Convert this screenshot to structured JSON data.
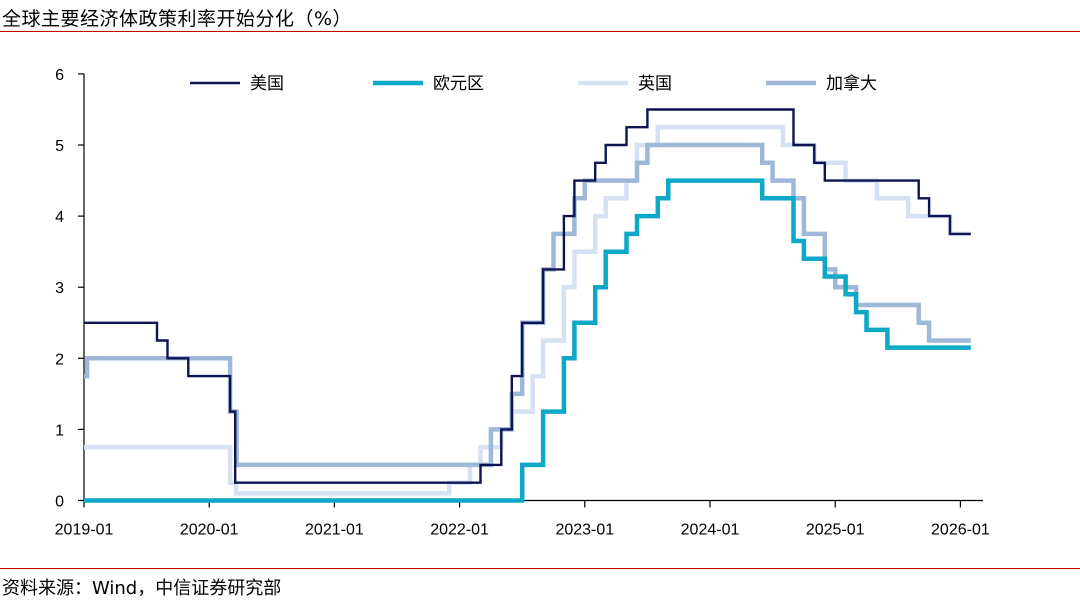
{
  "title": "全球主要经济体政策利率开始分化（%）",
  "source": "资料来源：Wind，中信证券研究部",
  "colors": {
    "美国": "#0d1450",
    "欧元区": "#0ca8c8",
    "英国": "#d6e2f3",
    "加拿大": "#9fb8d8"
  },
  "chart_data": {
    "type": "line",
    "step": true,
    "title": "全球主要经济体政策利率开始分化（%）",
    "xlabel": "",
    "ylabel": "",
    "xlim": [
      "2019-01",
      "2026-02"
    ],
    "ylim": [
      0,
      6
    ],
    "yticks": [
      0,
      1,
      2,
      3,
      4,
      5,
      6
    ],
    "xticks": [
      "2019-01",
      "2020-01",
      "2021-01",
      "2022-01",
      "2023-01",
      "2024-01",
      "2025-01",
      "2026-01"
    ],
    "grid": false,
    "legend_position": "top",
    "series": [
      {
        "name": "美国",
        "points": [
          [
            "2019-01",
            2.5
          ],
          [
            "2019-08",
            2.25
          ],
          [
            "2019-09",
            2.0
          ],
          [
            "2019-11",
            1.75
          ],
          [
            "2020-03",
            1.25
          ],
          [
            "2020-03-16",
            0.25
          ],
          [
            "2022-03",
            0.5
          ],
          [
            "2022-05",
            1.0
          ],
          [
            "2022-06",
            1.75
          ],
          [
            "2022-07",
            2.5
          ],
          [
            "2022-09",
            3.25
          ],
          [
            "2022-11",
            4.0
          ],
          [
            "2022-12",
            4.5
          ],
          [
            "2023-02",
            4.75
          ],
          [
            "2023-03",
            5.0
          ],
          [
            "2023-05",
            5.25
          ],
          [
            "2023-07",
            5.5
          ],
          [
            "2024-09",
            5.0
          ],
          [
            "2024-11",
            4.75
          ],
          [
            "2024-12",
            4.5
          ],
          [
            "2025-09",
            4.25
          ],
          [
            "2025-10",
            4.0
          ],
          [
            "2025-12",
            3.75
          ],
          [
            "2026-02",
            3.75
          ]
        ]
      },
      {
        "name": "欧元区",
        "points": [
          [
            "2019-01",
            0.0
          ],
          [
            "2022-07",
            0.5
          ],
          [
            "2022-09",
            1.25
          ],
          [
            "2022-11",
            2.0
          ],
          [
            "2022-12",
            2.5
          ],
          [
            "2023-02",
            3.0
          ],
          [
            "2023-03",
            3.5
          ],
          [
            "2023-05",
            3.75
          ],
          [
            "2023-06",
            4.0
          ],
          [
            "2023-08",
            4.25
          ],
          [
            "2023-09",
            4.5
          ],
          [
            "2024-06",
            4.25
          ],
          [
            "2024-09",
            3.65
          ],
          [
            "2024-10",
            3.4
          ],
          [
            "2024-12",
            3.15
          ],
          [
            "2025-02",
            2.9
          ],
          [
            "2025-03",
            2.65
          ],
          [
            "2025-04",
            2.4
          ],
          [
            "2025-06",
            2.15
          ],
          [
            "2026-02",
            2.15
          ]
        ]
      },
      {
        "name": "英国",
        "points": [
          [
            "2019-01",
            0.75
          ],
          [
            "2020-03",
            0.25
          ],
          [
            "2020-03-19",
            0.1
          ],
          [
            "2021-12",
            0.25
          ],
          [
            "2022-02",
            0.5
          ],
          [
            "2022-03",
            0.75
          ],
          [
            "2022-05",
            1.0
          ],
          [
            "2022-06",
            1.25
          ],
          [
            "2022-08",
            1.75
          ],
          [
            "2022-09",
            2.25
          ],
          [
            "2022-11",
            3.0
          ],
          [
            "2022-12",
            3.5
          ],
          [
            "2023-02",
            4.0
          ],
          [
            "2023-03",
            4.25
          ],
          [
            "2023-05",
            4.5
          ],
          [
            "2023-06",
            5.0
          ],
          [
            "2023-08",
            5.25
          ],
          [
            "2024-08",
            5.0
          ],
          [
            "2024-11",
            4.75
          ],
          [
            "2025-02",
            4.5
          ],
          [
            "2025-05",
            4.25
          ],
          [
            "2025-08",
            4.0
          ],
          [
            "2025-12",
            3.75
          ],
          [
            "2026-02",
            3.75
          ]
        ]
      },
      {
        "name": "加拿大",
        "points": [
          [
            "2019-01",
            1.75
          ],
          [
            "2019-01-10",
            2.0
          ],
          [
            "2020-03",
            1.25
          ],
          [
            "2020-03-20",
            0.5
          ],
          [
            "2022-03",
            0.5
          ],
          [
            "2022-04",
            1.0
          ],
          [
            "2022-06",
            1.5
          ],
          [
            "2022-07",
            2.5
          ],
          [
            "2022-09",
            3.25
          ],
          [
            "2022-10",
            3.75
          ],
          [
            "2022-12",
            4.25
          ],
          [
            "2023-01",
            4.5
          ],
          [
            "2023-06",
            4.75
          ],
          [
            "2023-07",
            5.0
          ],
          [
            "2024-06",
            4.75
          ],
          [
            "2024-07",
            4.5
          ],
          [
            "2024-09",
            4.25
          ],
          [
            "2024-10",
            3.75
          ],
          [
            "2024-12",
            3.25
          ],
          [
            "2025-01",
            3.0
          ],
          [
            "2025-03",
            2.75
          ],
          [
            "2025-09",
            2.5
          ],
          [
            "2025-10",
            2.25
          ],
          [
            "2026-02",
            2.25
          ]
        ]
      }
    ]
  }
}
